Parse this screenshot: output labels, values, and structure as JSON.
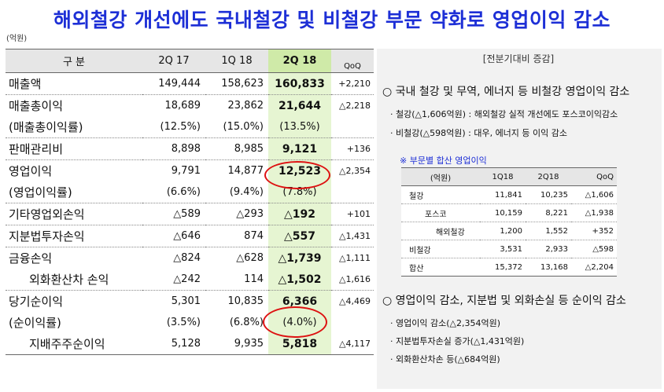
{
  "title": "해외철강 개선에도 국내철강 및 비철강 부문 약화로 영업이익 감소",
  "unit": "(억원)",
  "table": {
    "headers": [
      "구    분",
      "2Q 17",
      "1Q 18",
      "2Q 18",
      "QoQ"
    ],
    "rows": [
      {
        "label": "매출액",
        "v1": "149,444",
        "v2": "158,623",
        "v3": "160,833",
        "qoq": "+2,210"
      },
      {
        "label": "매출총이익",
        "v1": "18,689",
        "v2": "23,862",
        "v3": "21,644",
        "qoq": "△2,218"
      },
      {
        "label": "(매출총이익률)",
        "v1": "(12.5%)",
        "v2": "(15.0%)",
        "v3": "(13.5%)",
        "qoq": ""
      },
      {
        "label": "판매관리비",
        "v1": "8,898",
        "v2": "8,985",
        "v3": "9,121",
        "qoq": "+136"
      },
      {
        "label": "영업이익",
        "v1": "9,791",
        "v2": "14,877",
        "v3": "12,523",
        "qoq": "△2,354"
      },
      {
        "label": "(영업이익률)",
        "v1": "(6.6%)",
        "v2": "(9.4%)",
        "v3": "(7.8%)",
        "qoq": ""
      },
      {
        "label": "기타영업외손익",
        "v1": "△589",
        "v2": "△293",
        "v3": "△192",
        "qoq": "+101"
      },
      {
        "label": "지분법투자손익",
        "v1": "△646",
        "v2": "874",
        "v3": "△557",
        "qoq": "△1,431"
      },
      {
        "label": "금융손익",
        "v1": "△824",
        "v2": "△628",
        "v3": "△1,739",
        "qoq": "△1,111"
      },
      {
        "label": "외화환산차 손익",
        "v1": "△242",
        "v2": "114",
        "v3": "△1,502",
        "qoq": "△1,616"
      },
      {
        "label": "당기순이익",
        "v1": "5,301",
        "v2": "10,835",
        "v3": "6,366",
        "qoq": "△4,469"
      },
      {
        "label": "(순이익률)",
        "v1": "(3.5%)",
        "v2": "(6.8%)",
        "v3": "(4.0%)",
        "qoq": ""
      },
      {
        "label": "지배주주순이익",
        "v1": "5,128",
        "v2": "9,935",
        "v3": "5,818",
        "qoq": "△4,117"
      }
    ]
  },
  "panel": {
    "header": "[전분기대비 증감]",
    "sec1_title": "○ 국내 철강 및 무역, 에너지 등 비철강 영업이익 감소",
    "sec1_b1": "· 철강(△1,606억원) : 해외철강 실적 개선에도 포스코이익감소",
    "sec1_b2": "· 비철강(△598억원) : 대우, 에너지 등 이익 감소",
    "sub_title": "※ 부문별 합산 영업이익",
    "sub_headers": [
      "(억원)",
      "1Q18",
      "2Q18",
      "QoQ"
    ],
    "sub_rows": [
      {
        "label": "철강",
        "a": "11,841",
        "b": "10,235",
        "c": "△1,606"
      },
      {
        "label": "포스코",
        "a": "10,159",
        "b": "8,221",
        "c": "△1,938"
      },
      {
        "label": "해외철강",
        "a": "1,200",
        "b": "1,552",
        "c": "+352"
      },
      {
        "label": "비철강",
        "a": "3,531",
        "b": "2,933",
        "c": "△598"
      },
      {
        "label": "합산",
        "a": "15,372",
        "b": "13,168",
        "c": "△2,204"
      }
    ],
    "sec2_title": "○ 영업이익 감소, 지분법 및 외화손실 등 순이익 감소",
    "sec2_b1": "· 영업이익 감소(△2,354억원)",
    "sec2_b2": "· 지분법투자손실 증가(△1,431억원)",
    "sec2_b3": "· 외화환산차손 등(△684억원)"
  }
}
